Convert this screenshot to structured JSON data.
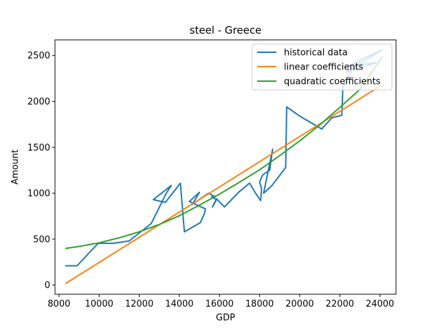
{
  "chart_data": {
    "type": "line",
    "title": "steel - Greece",
    "xlabel": "GDP",
    "ylabel": "Amount",
    "xlim": [
      7800,
      24800
    ],
    "ylim": [
      -100,
      2670
    ],
    "xticks": [
      8000,
      10000,
      12000,
      14000,
      16000,
      18000,
      20000,
      22000,
      24000
    ],
    "yticks": [
      0,
      500,
      1000,
      1500,
      2000,
      2500
    ],
    "grid": false,
    "legend_position": "top-right",
    "series": [
      {
        "name": "historical data",
        "color": "#1f77b4",
        "x": [
          8350,
          8900,
          9950,
          10700,
          11500,
          12600,
          13350,
          13600,
          12700,
          13300,
          14050,
          14250,
          15050,
          15250,
          15300,
          14500,
          15000,
          14650,
          15450,
          15800,
          15600,
          15850,
          15650,
          15850,
          16250,
          16950,
          17500,
          17800,
          18050,
          18100,
          18000,
          18150,
          18500,
          18650,
          18200,
          18600,
          19300,
          19350,
          20000,
          21100,
          21600,
          22100,
          22150,
          22500,
          23000,
          24100,
          22300,
          23800,
          22400,
          23000
        ],
        "y": [
          210,
          210,
          455,
          455,
          480,
          670,
          1000,
          1085,
          930,
          900,
          1110,
          580,
          680,
          780,
          830,
          910,
          1010,
          880,
          1000,
          960,
          960,
          930,
          850,
          940,
          850,
          1010,
          1110,
          1000,
          920,
          1050,
          1120,
          1200,
          1250,
          1480,
          1000,
          1080,
          1280,
          1940,
          1840,
          1700,
          1820,
          1850,
          2150,
          2310,
          2450,
          2560,
          2320,
          2420,
          2390,
          2440
        ]
      },
      {
        "name": "linear coefficients",
        "color": "#ff7f0e",
        "x": [
          8350,
          24100
        ],
        "y": [
          20,
          2180
        ]
      },
      {
        "name": "quadratic coefficients",
        "color": "#2ca02c",
        "x": [
          8350,
          9000,
          10000,
          11000,
          12000,
          13000,
          14000,
          15000,
          16000,
          17000,
          18000,
          19000,
          20000,
          21000,
          22000,
          23000,
          24100
        ],
        "y": [
          400,
          420,
          460,
          515,
          580,
          660,
          755,
          870,
          990,
          1120,
          1255,
          1410,
          1570,
          1745,
          1935,
          2130,
          2480
        ]
      }
    ]
  }
}
